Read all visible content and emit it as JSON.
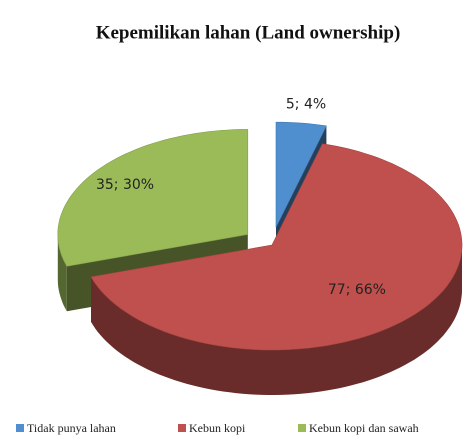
{
  "chart_data": {
    "type": "pie",
    "title": "Kepemilikan lahan (Land ownership)",
    "categories": [
      "Tidak punya lahan",
      "Kebun kopi",
      "Kebun kopi dan sawah"
    ],
    "values": [
      5,
      77,
      35
    ],
    "value_labels": [
      "5; 4%",
      "77; 66%",
      "35; 30%"
    ],
    "colors": [
      "#4f8fcf",
      "#c0504d",
      "#9bbb59"
    ],
    "legend": "bottom"
  }
}
